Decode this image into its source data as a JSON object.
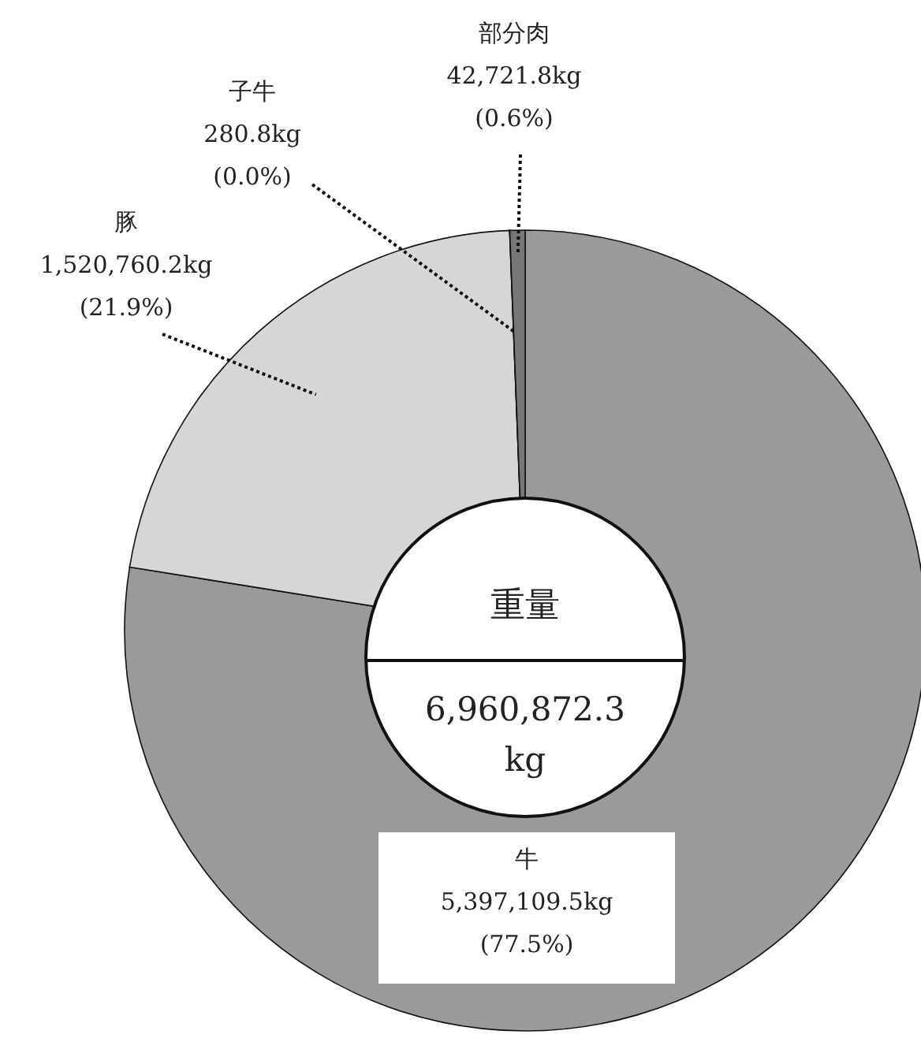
{
  "chart_data": {
    "type": "donut",
    "categories": [
      "牛",
      "豚",
      "子牛",
      "部分肉"
    ],
    "values": [
      5397109.5,
      1520760.2,
      280.8,
      42721.8
    ],
    "colors": [
      "#9a9a9a",
      "#d6d6d6",
      "#222222",
      "#777777"
    ],
    "value_labels": [
      "5,397,109.5kg\n(77.5%)",
      "1,520,760.2kg\n(21.9%)",
      "280.8kg\n(0.0%)",
      "42,721.8kg\n(0.6%)"
    ],
    "annotations": [
      "重量",
      "6,960,872.3\nkg"
    ]
  }
}
